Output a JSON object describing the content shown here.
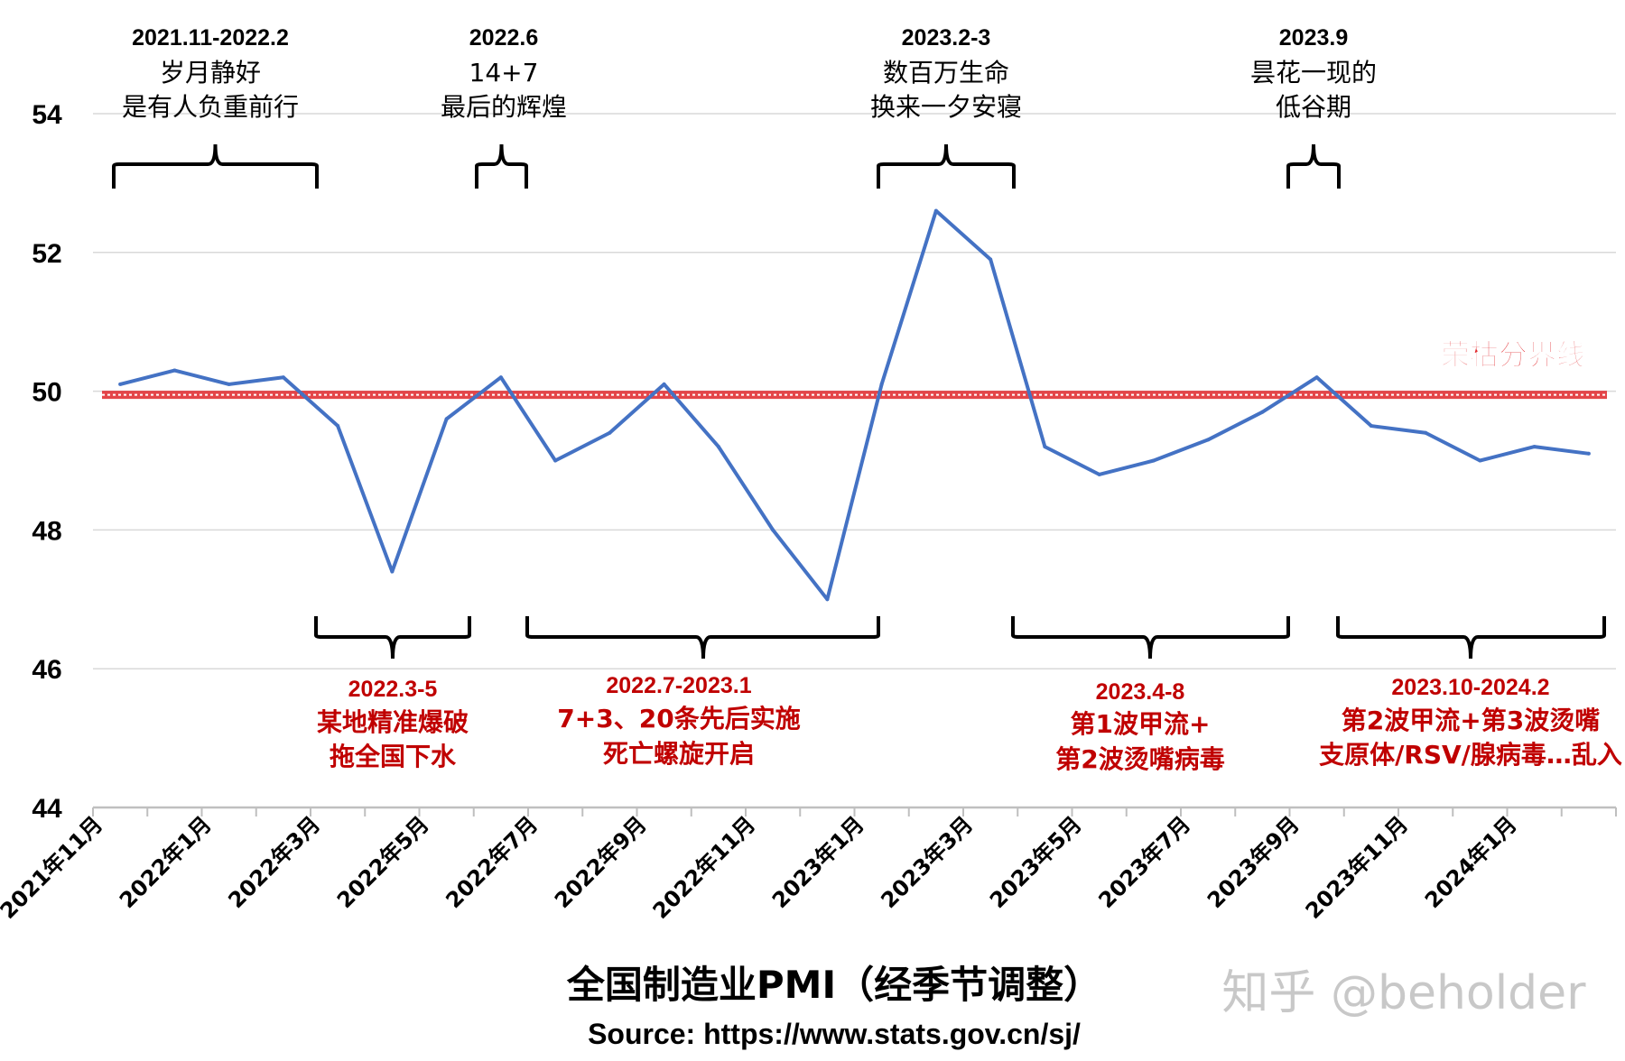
{
  "chart_data": {
    "type": "line",
    "title": "全国制造业PMI（经季节调整）",
    "subtitle": "Source:  https://www.stats.gov.cn/sj/",
    "watermark": "知乎 @beholder",
    "xlabel": "",
    "ylabel": "",
    "ylim": [
      44,
      54
    ],
    "yticks": [
      "44",
      "46",
      "48",
      "50",
      "52",
      "54"
    ],
    "grid": true,
    "x": [
      "2021-11",
      "2021-12",
      "2022-01",
      "2022-02",
      "2022-03",
      "2022-04",
      "2022-05",
      "2022-06",
      "2022-07",
      "2022-08",
      "2022-09",
      "2022-10",
      "2022-11",
      "2022-12",
      "2023-01",
      "2023-02",
      "2023-03",
      "2023-04",
      "2023-05",
      "2023-06",
      "2023-07",
      "2023-08",
      "2023-09",
      "2023-10",
      "2023-11",
      "2023-12",
      "2024-01",
      "2024-02"
    ],
    "xtick_labels": [
      "2021年11月",
      "2022年1月",
      "2022年3月",
      "2022年5月",
      "2022年7月",
      "2022年9月",
      "2022年11月",
      "2023年1月",
      "2023年3月",
      "2023年5月",
      "2023年7月",
      "2023年9月",
      "2023年11月",
      "2024年1月"
    ],
    "series": [
      {
        "values": [
          50.1,
          50.3,
          50.1,
          50.2,
          49.5,
          47.4,
          49.6,
          50.2,
          49.0,
          49.4,
          50.1,
          49.2,
          48.0,
          47.0,
          50.1,
          52.6,
          51.9,
          49.2,
          48.8,
          49.0,
          49.3,
          49.7,
          50.2,
          49.5,
          49.4,
          49.0,
          49.2,
          49.1
        ],
        "color": "#4472C4"
      }
    ],
    "reference_line": {
      "value": 50,
      "label": "荣枯分界线",
      "color": "#E0262A"
    },
    "annotations_top": [
      {
        "from": "2021-11",
        "to": "2022-02",
        "lines": [
          "2021.11-2022.2",
          "岁月静好",
          "是有人负重前行"
        ]
      },
      {
        "from": "2022-06",
        "to": "2022-06",
        "lines": [
          "2022.6",
          "14+7",
          "最后的辉煌"
        ]
      },
      {
        "from": "2023-02",
        "to": "2023-03",
        "lines": [
          "2023.2-3",
          "数百万生命",
          "换来一夕安寝"
        ]
      },
      {
        "from": "2023-09",
        "to": "2023-09",
        "lines": [
          "2023.9",
          "昙花一现的",
          "低谷期"
        ]
      }
    ],
    "annotations_bottom": [
      {
        "from": "2022-03",
        "to": "2022-05",
        "lines": [
          "2022.3-5",
          "某地精准爆破",
          "拖全国下水"
        ]
      },
      {
        "from": "2022-07",
        "to": "2023-01",
        "lines": [
          "2022.7-2023.1",
          "7+3、20条先后实施",
          "死亡螺旋开启"
        ]
      },
      {
        "from": "2023-04",
        "to": "2023-08",
        "lines": [
          "2023.4-8",
          "第1波甲流+",
          "第2波烫嘴病毒"
        ]
      },
      {
        "from": "2023-10",
        "to": "2024-02",
        "lines": [
          "2023.10-2024.2",
          "第2波甲流+第3波烫嘴",
          "支原体/RSV/腺病毒…乱入"
        ]
      }
    ],
    "annotation_colors": {
      "top": "#000000",
      "bottom": "#C00000"
    }
  }
}
